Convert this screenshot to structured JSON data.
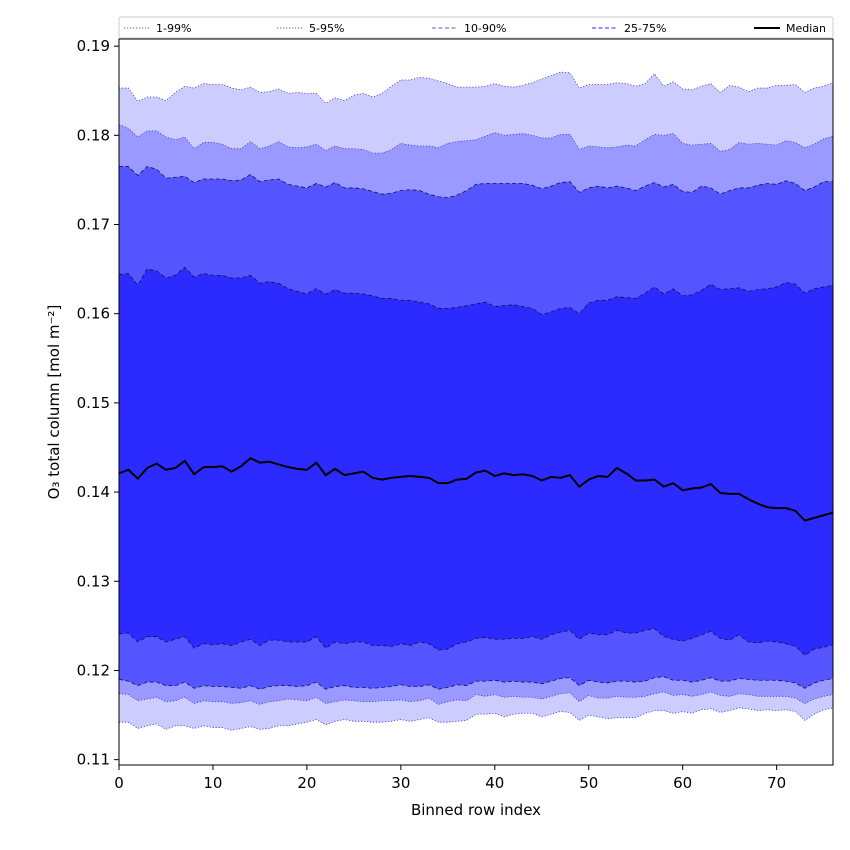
{
  "chart_data": {
    "type": "area",
    "xlabel": "Binned row index",
    "ylabel": "O₃ total column [mol m⁻²]",
    "xlim": [
      0,
      76
    ],
    "ylim": [
      0.1094,
      0.1908
    ],
    "xticks": [
      0,
      10,
      20,
      30,
      40,
      50,
      60,
      70
    ],
    "yticks": [
      0.11,
      0.12,
      0.13,
      0.14,
      0.15,
      0.16,
      0.17,
      0.18,
      0.19
    ],
    "ytick_labels": [
      "0.11",
      "0.12",
      "0.13",
      "0.14",
      "0.15",
      "0.16",
      "0.17",
      "0.18",
      "0.19"
    ],
    "grid": false,
    "legend_position": "top",
    "x": [
      0,
      1,
      2,
      3,
      4,
      5,
      6,
      7,
      8,
      9,
      10,
      11,
      12,
      13,
      14,
      15,
      16,
      17,
      18,
      19,
      20,
      21,
      22,
      23,
      24,
      25,
      26,
      27,
      28,
      29,
      30,
      31,
      32,
      33,
      34,
      35,
      36,
      37,
      38,
      39,
      40,
      41,
      42,
      43,
      44,
      45,
      46,
      47,
      48,
      49,
      50,
      51,
      52,
      53,
      54,
      55,
      56,
      57,
      58,
      59,
      60,
      61,
      62,
      63,
      64,
      65,
      66,
      67,
      68,
      69,
      70,
      71,
      72,
      73,
      74,
      75,
      76
    ],
    "bands": [
      {
        "name": "1-99%",
        "color": "#ccccff",
        "line_style": "dotted",
        "lower": [
          0.1142,
          0.1142,
          0.1135,
          0.1138,
          0.114,
          0.1134,
          0.1138,
          0.1138,
          0.1135,
          0.1138,
          0.1136,
          0.1136,
          0.1133,
          0.1135,
          0.1137,
          0.1134,
          0.1135,
          0.1138,
          0.1138,
          0.114,
          0.1142,
          0.1145,
          0.1139,
          0.1143,
          0.1145,
          0.1143,
          0.1143,
          0.1142,
          0.1142,
          0.1143,
          0.1145,
          0.1143,
          0.1145,
          0.1147,
          0.1142,
          0.1142,
          0.1143,
          0.1144,
          0.1151,
          0.1151,
          0.1152,
          0.1148,
          0.1151,
          0.1152,
          0.1152,
          0.1148,
          0.1151,
          0.1154,
          0.1153,
          0.1144,
          0.115,
          0.1148,
          0.1146,
          0.1147,
          0.1147,
          0.1147,
          0.1152,
          0.1155,
          0.1155,
          0.1152,
          0.1154,
          0.1152,
          0.1156,
          0.1157,
          0.1153,
          0.1155,
          0.1158,
          0.1157,
          0.1155,
          0.1156,
          0.1155,
          0.1156,
          0.1154,
          0.1144,
          0.1151,
          0.1156,
          0.1158
        ],
        "upper": [
          0.1853,
          0.1853,
          0.1838,
          0.1843,
          0.1843,
          0.1839,
          0.1848,
          0.1855,
          0.1853,
          0.1858,
          0.1857,
          0.1857,
          0.1853,
          0.1851,
          0.1854,
          0.1848,
          0.1849,
          0.1852,
          0.1847,
          0.1848,
          0.1847,
          0.1847,
          0.1836,
          0.1842,
          0.1839,
          0.1845,
          0.1847,
          0.1843,
          0.1847,
          0.1855,
          0.1862,
          0.1862,
          0.1865,
          0.1864,
          0.1861,
          0.1858,
          0.1854,
          0.1854,
          0.1854,
          0.1855,
          0.1858,
          0.1855,
          0.1854,
          0.1856,
          0.1859,
          0.1863,
          0.1867,
          0.1871,
          0.187,
          0.1853,
          0.1857,
          0.1857,
          0.1857,
          0.1859,
          0.1858,
          0.1855,
          0.1858,
          0.1869,
          0.1855,
          0.186,
          0.1852,
          0.1851,
          0.1855,
          0.1858,
          0.1848,
          0.1856,
          0.1854,
          0.1849,
          0.1853,
          0.1853,
          0.1856,
          0.1856,
          0.1857,
          0.1848,
          0.1853,
          0.1855,
          0.1859
        ]
      },
      {
        "name": "5-95%",
        "color": "#9999ff",
        "line_style": "dotted",
        "lower": [
          0.1174,
          0.1173,
          0.1166,
          0.1168,
          0.117,
          0.1165,
          0.1166,
          0.117,
          0.1163,
          0.1166,
          0.1165,
          0.1165,
          0.1163,
          0.1164,
          0.1166,
          0.1162,
          0.1165,
          0.1166,
          0.1168,
          0.1167,
          0.1166,
          0.117,
          0.1163,
          0.1165,
          0.1167,
          0.1166,
          0.1165,
          0.1165,
          0.1166,
          0.1166,
          0.1167,
          0.1165,
          0.1166,
          0.1169,
          0.1162,
          0.1165,
          0.1167,
          0.1166,
          0.1173,
          0.1171,
          0.1173,
          0.117,
          0.1171,
          0.117,
          0.117,
          0.1168,
          0.1171,
          0.1174,
          0.1175,
          0.1165,
          0.1172,
          0.1169,
          0.1169,
          0.1171,
          0.117,
          0.117,
          0.1171,
          0.1174,
          0.1176,
          0.1172,
          0.1173,
          0.1171,
          0.1173,
          0.1176,
          0.1172,
          0.1171,
          0.1174,
          0.1173,
          0.1171,
          0.1171,
          0.1171,
          0.1171,
          0.1169,
          0.1163,
          0.1168,
          0.1171,
          0.1173
        ],
        "upper": [
          0.1812,
          0.1808,
          0.1798,
          0.1805,
          0.1805,
          0.1798,
          0.1795,
          0.1798,
          0.1785,
          0.1792,
          0.1792,
          0.179,
          0.1785,
          0.1785,
          0.1793,
          0.1785,
          0.1788,
          0.1793,
          0.1787,
          0.1786,
          0.1787,
          0.179,
          0.1783,
          0.1788,
          0.1785,
          0.1785,
          0.1784,
          0.178,
          0.178,
          0.1784,
          0.1791,
          0.1789,
          0.1788,
          0.1788,
          0.1786,
          0.1791,
          0.1793,
          0.1794,
          0.1795,
          0.1799,
          0.1803,
          0.18,
          0.1801,
          0.1802,
          0.18,
          0.1797,
          0.1797,
          0.1801,
          0.1801,
          0.1784,
          0.1788,
          0.1787,
          0.1786,
          0.1787,
          0.1789,
          0.1788,
          0.1795,
          0.1801,
          0.18,
          0.1802,
          0.1791,
          0.1789,
          0.179,
          0.1791,
          0.1782,
          0.1784,
          0.1792,
          0.179,
          0.1791,
          0.179,
          0.1789,
          0.1794,
          0.1792,
          0.1786,
          0.179,
          0.1796,
          0.1799
        ]
      },
      {
        "name": "10-90%",
        "color": "#5555ff",
        "line_style": "dashed",
        "lower": [
          0.119,
          0.1188,
          0.1183,
          0.1187,
          0.1187,
          0.1183,
          0.1183,
          0.1187,
          0.118,
          0.1183,
          0.1182,
          0.1182,
          0.1181,
          0.118,
          0.1183,
          0.1179,
          0.1182,
          0.1183,
          0.1183,
          0.1182,
          0.1183,
          0.1187,
          0.1179,
          0.1182,
          0.1183,
          0.1181,
          0.1181,
          0.118,
          0.1181,
          0.1182,
          0.1184,
          0.1182,
          0.1182,
          0.1184,
          0.1179,
          0.1181,
          0.1184,
          0.1183,
          0.1188,
          0.1188,
          0.1189,
          0.1187,
          0.1188,
          0.1187,
          0.1187,
          0.1185,
          0.1188,
          0.1191,
          0.1192,
          0.1183,
          0.1189,
          0.1187,
          0.1186,
          0.1188,
          0.1188,
          0.1187,
          0.1188,
          0.1192,
          0.1193,
          0.1189,
          0.1189,
          0.1187,
          0.1189,
          0.1192,
          0.1188,
          0.1188,
          0.1191,
          0.119,
          0.1189,
          0.1189,
          0.1189,
          0.1188,
          0.1186,
          0.118,
          0.1186,
          0.1189,
          0.1191
        ],
        "upper": [
          0.1765,
          0.1765,
          0.1755,
          0.1765,
          0.1762,
          0.1752,
          0.1753,
          0.1754,
          0.1747,
          0.1751,
          0.1751,
          0.1751,
          0.1749,
          0.175,
          0.1756,
          0.1748,
          0.175,
          0.1751,
          0.1745,
          0.1743,
          0.1741,
          0.1746,
          0.1742,
          0.1747,
          0.1741,
          0.1741,
          0.174,
          0.1737,
          0.1734,
          0.1735,
          0.1738,
          0.1739,
          0.1738,
          0.1734,
          0.1731,
          0.173,
          0.1733,
          0.1738,
          0.1745,
          0.1746,
          0.1746,
          0.1746,
          0.1746,
          0.1746,
          0.1744,
          0.174,
          0.1743,
          0.1747,
          0.1748,
          0.1736,
          0.1741,
          0.1743,
          0.1741,
          0.1743,
          0.1741,
          0.1738,
          0.1743,
          0.1747,
          0.1742,
          0.1745,
          0.1737,
          0.1736,
          0.1743,
          0.1741,
          0.1734,
          0.1738,
          0.1741,
          0.1741,
          0.1744,
          0.1746,
          0.1745,
          0.1749,
          0.1746,
          0.1738,
          0.1742,
          0.1748,
          0.1748
        ]
      },
      {
        "name": "25-75%",
        "color": "#2b2bff",
        "line_style": "dashed",
        "lower": [
          0.1241,
          0.1242,
          0.1232,
          0.1238,
          0.1238,
          0.1232,
          0.1235,
          0.1238,
          0.1225,
          0.123,
          0.1229,
          0.123,
          0.1228,
          0.1232,
          0.1235,
          0.1228,
          0.1234,
          0.1234,
          0.1232,
          0.1232,
          0.1232,
          0.1238,
          0.1225,
          0.1232,
          0.123,
          0.1232,
          0.1232,
          0.1228,
          0.1228,
          0.1227,
          0.123,
          0.1228,
          0.1232,
          0.123,
          0.1223,
          0.1224,
          0.123,
          0.1232,
          0.1236,
          0.1237,
          0.1235,
          0.1235,
          0.1236,
          0.1236,
          0.1238,
          0.1235,
          0.124,
          0.1243,
          0.1245,
          0.1235,
          0.1242,
          0.124,
          0.124,
          0.1245,
          0.1242,
          0.1242,
          0.1245,
          0.1247,
          0.1238,
          0.1235,
          0.1233,
          0.1236,
          0.124,
          0.1244,
          0.1236,
          0.1234,
          0.124,
          0.1232,
          0.1231,
          0.1233,
          0.1232,
          0.123,
          0.1227,
          0.1217,
          0.1224,
          0.1226,
          0.1229
        ],
        "upper": [
          0.1644,
          0.1645,
          0.1632,
          0.165,
          0.1648,
          0.164,
          0.1643,
          0.1652,
          0.1641,
          0.1645,
          0.1643,
          0.1643,
          0.164,
          0.164,
          0.1643,
          0.1634,
          0.1636,
          0.1634,
          0.1628,
          0.1625,
          0.1622,
          0.1628,
          0.1622,
          0.1627,
          0.1623,
          0.1623,
          0.1622,
          0.162,
          0.1617,
          0.1617,
          0.1615,
          0.1615,
          0.1613,
          0.1611,
          0.1606,
          0.1606,
          0.1607,
          0.1609,
          0.1611,
          0.1613,
          0.1608,
          0.1609,
          0.161,
          0.1608,
          0.1606,
          0.1599,
          0.1602,
          0.1606,
          0.1607,
          0.16,
          0.1612,
          0.1615,
          0.1615,
          0.1619,
          0.1618,
          0.1617,
          0.1623,
          0.163,
          0.1622,
          0.1628,
          0.162,
          0.1621,
          0.1626,
          0.1633,
          0.1627,
          0.1628,
          0.1629,
          0.1625,
          0.1627,
          0.1628,
          0.163,
          0.1635,
          0.1633,
          0.1623,
          0.1628,
          0.163,
          0.1632
        ]
      }
    ],
    "median": {
      "name": "Median",
      "color": "#000000",
      "values": [
        0.1421,
        0.1425,
        0.1415,
        0.1427,
        0.1432,
        0.1425,
        0.1427,
        0.1435,
        0.142,
        0.1428,
        0.1428,
        0.1429,
        0.1423,
        0.1429,
        0.1438,
        0.1433,
        0.1434,
        0.1431,
        0.1428,
        0.1426,
        0.1425,
        0.1433,
        0.1419,
        0.1426,
        0.1419,
        0.1421,
        0.1423,
        0.1416,
        0.1414,
        0.1416,
        0.1417,
        0.1418,
        0.1417,
        0.1416,
        0.141,
        0.141,
        0.1414,
        0.1415,
        0.1422,
        0.1424,
        0.1418,
        0.1421,
        0.1419,
        0.142,
        0.1418,
        0.1413,
        0.1417,
        0.1416,
        0.1419,
        0.1406,
        0.1414,
        0.1418,
        0.1417,
        0.1427,
        0.1421,
        0.1413,
        0.1413,
        0.1414,
        0.1406,
        0.141,
        0.1402,
        0.1404,
        0.1405,
        0.1409,
        0.1399,
        0.1398,
        0.1398,
        0.1392,
        0.1387,
        0.1383,
        0.1382,
        0.1382,
        0.1379,
        0.1368,
        0.1371,
        0.1374,
        0.1377
      ]
    },
    "legend": [
      {
        "label": "1-99%",
        "color": "#ccccff",
        "style": "dotted"
      },
      {
        "label": "5-95%",
        "color": "#9999ff",
        "style": "dotted"
      },
      {
        "label": "10-90%",
        "color": "#5555ff",
        "style": "dashed"
      },
      {
        "label": "25-75%",
        "color": "#2b2bff",
        "style": "dashed"
      },
      {
        "label": "Median",
        "color": "#000000",
        "style": "solid"
      }
    ]
  }
}
